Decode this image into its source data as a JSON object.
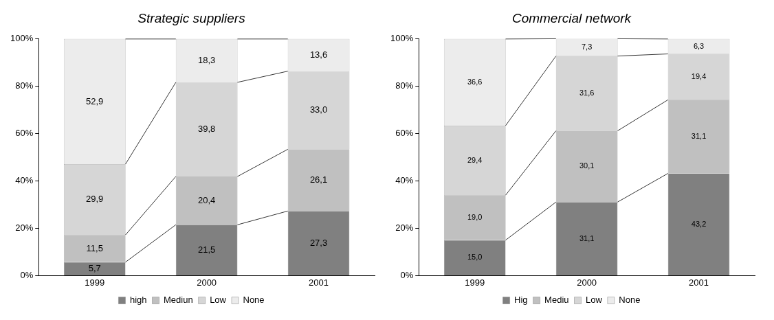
{
  "chart_data": [
    {
      "type": "bar",
      "stacked": true,
      "title": "Strategic suppliers",
      "categories": [
        "1999",
        "2000",
        "2001"
      ],
      "series": [
        {
          "name": "high",
          "color": "#808080",
          "values": [
            5.7,
            21.5,
            27.3
          ],
          "value_labels": [
            "5,7",
            "21,5",
            "27,3"
          ]
        },
        {
          "name": "Mediun",
          "color": "#c0c0c0",
          "values": [
            11.5,
            20.4,
            26.1
          ],
          "value_labels": [
            "11,5",
            "20,4",
            "26,1"
          ]
        },
        {
          "name": "Low",
          "color": "#d6d6d6",
          "values": [
            29.9,
            39.8,
            33.0
          ],
          "value_labels": [
            "29,9",
            "39,8",
            "33,0"
          ]
        },
        {
          "name": "None",
          "color": "#ececec",
          "values": [
            52.9,
            18.3,
            13.6
          ],
          "value_labels": [
            "52,9",
            "18,3",
            "13,6"
          ]
        }
      ],
      "ylim": [
        0,
        100
      ],
      "yticks": [
        {
          "value": 0,
          "label": "0%"
        },
        {
          "value": 20,
          "label": "20%"
        },
        {
          "value": 40,
          "label": "40%"
        },
        {
          "value": 60,
          "label": "60%"
        },
        {
          "value": 80,
          "label": "80%"
        },
        {
          "value": 100,
          "label": "100%"
        }
      ],
      "grid": false,
      "legend": "bottom"
    },
    {
      "type": "bar",
      "stacked": true,
      "title": "Commercial network",
      "categories": [
        "1999",
        "2000",
        "2001"
      ],
      "series": [
        {
          "name": "Hig",
          "color": "#808080",
          "values": [
            15.0,
            31.1,
            43.2
          ],
          "value_labels": [
            "15,0",
            "31,1",
            "43,2"
          ]
        },
        {
          "name": "Mediu",
          "color": "#c0c0c0",
          "values": [
            19.0,
            30.1,
            31.1
          ],
          "value_labels": [
            "19,0",
            "30,1",
            "31,1"
          ]
        },
        {
          "name": "Low",
          "color": "#d6d6d6",
          "values": [
            29.4,
            31.6,
            19.4
          ],
          "value_labels": [
            "29,4",
            "31,6",
            "19,4"
          ]
        },
        {
          "name": "None",
          "color": "#ececec",
          "values": [
            36.6,
            7.3,
            6.3
          ],
          "value_labels": [
            "36,6",
            "7,3",
            "6,3"
          ]
        }
      ],
      "ylim": [
        0,
        100
      ],
      "yticks": [
        {
          "value": 0,
          "label": "0%"
        },
        {
          "value": 20,
          "label": "20%"
        },
        {
          "value": 40,
          "label": "40%"
        },
        {
          "value": 60,
          "label": "60%"
        },
        {
          "value": 80,
          "label": "80%"
        },
        {
          "value": 100,
          "label": "100%"
        }
      ],
      "grid": false,
      "legend": "bottom"
    }
  ]
}
